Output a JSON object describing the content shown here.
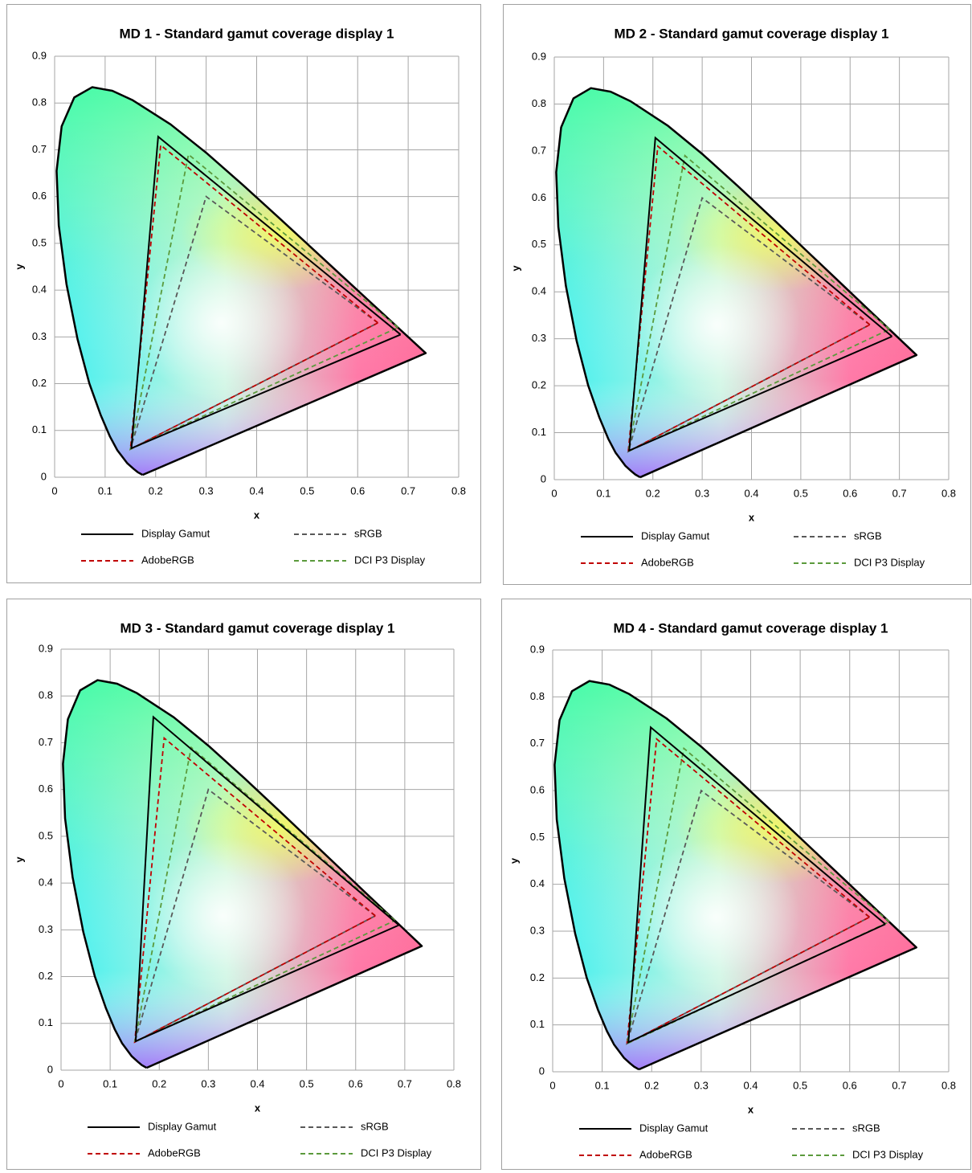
{
  "chart_data": [
    {
      "type": "line",
      "title": "MD 1 - Standard gamut coverage display 1",
      "x_label": "x",
      "y_label": "y",
      "xlim": [
        0,
        0.8
      ],
      "ylim": [
        0,
        0.9
      ],
      "xticks": [
        0,
        0.1,
        0.2,
        0.3,
        0.4,
        0.5,
        0.6,
        0.7,
        0.8
      ],
      "yticks": [
        0,
        0.1,
        0.2,
        0.3,
        0.4,
        0.5,
        0.6,
        0.7,
        0.8,
        0.9
      ],
      "grid": true,
      "spectral_locus": {
        "x": [
          0.1741,
          0.1644,
          0.1566,
          0.144,
          0.1241,
          0.1096,
          0.0913,
          0.0687,
          0.0454,
          0.0235,
          0.0082,
          0.0039,
          0.0139,
          0.0389,
          0.0743,
          0.1142,
          0.1547,
          0.2296,
          0.3016,
          0.3731,
          0.4441,
          0.5125,
          0.5752,
          0.627,
          0.6915,
          0.719,
          0.7347,
          0.1741
        ],
        "y": [
          0.005,
          0.0109,
          0.0177,
          0.0297,
          0.0578,
          0.0868,
          0.1327,
          0.2007,
          0.295,
          0.4127,
          0.5384,
          0.6548,
          0.7502,
          0.812,
          0.8338,
          0.8262,
          0.8059,
          0.7543,
          0.6923,
          0.6245,
          0.5547,
          0.4866,
          0.4242,
          0.3725,
          0.3083,
          0.2809,
          0.2653,
          0.005
        ]
      },
      "series": [
        {
          "name": "Display Gamut",
          "color": "#000000",
          "dashed": false,
          "x": [
            0.685,
            0.205,
            0.152,
            0.685
          ],
          "values": [
            0.305,
            0.728,
            0.062,
            0.305
          ]
        },
        {
          "name": "sRGB",
          "color": "#595959",
          "dashed": true,
          "x": [
            0.64,
            0.3,
            0.15,
            0.64
          ],
          "values": [
            0.33,
            0.6,
            0.06,
            0.33
          ]
        },
        {
          "name": "AdobeRGB",
          "color": "#c00000",
          "dashed": true,
          "x": [
            0.64,
            0.21,
            0.15,
            0.64
          ],
          "values": [
            0.33,
            0.71,
            0.06,
            0.33
          ]
        },
        {
          "name": "DCI P3 Display",
          "color": "#5b9a3c",
          "dashed": true,
          "x": [
            0.68,
            0.265,
            0.15,
            0.68
          ],
          "values": [
            0.32,
            0.69,
            0.06,
            0.32
          ]
        }
      ]
    },
    {
      "type": "line",
      "title": "MD 2 - Standard gamut coverage display 1",
      "x_label": "x",
      "y_label": "y",
      "xlim": [
        0,
        0.8
      ],
      "ylim": [
        0,
        0.9
      ],
      "xticks": [
        0,
        0.1,
        0.2,
        0.3,
        0.4,
        0.5,
        0.6,
        0.7,
        0.8
      ],
      "yticks": [
        0,
        0.1,
        0.2,
        0.3,
        0.4,
        0.5,
        0.6,
        0.7,
        0.8,
        0.9
      ],
      "grid": true,
      "spectral_locus": {
        "x": [
          0.1741,
          0.1644,
          0.1566,
          0.144,
          0.1241,
          0.1096,
          0.0913,
          0.0687,
          0.0454,
          0.0235,
          0.0082,
          0.0039,
          0.0139,
          0.0389,
          0.0743,
          0.1142,
          0.1547,
          0.2296,
          0.3016,
          0.3731,
          0.4441,
          0.5125,
          0.5752,
          0.627,
          0.6915,
          0.719,
          0.7347,
          0.1741
        ],
        "y": [
          0.005,
          0.0109,
          0.0177,
          0.0297,
          0.0578,
          0.0868,
          0.1327,
          0.2007,
          0.295,
          0.4127,
          0.5384,
          0.6548,
          0.7502,
          0.812,
          0.8338,
          0.8262,
          0.8059,
          0.7543,
          0.6923,
          0.6245,
          0.5547,
          0.4866,
          0.4242,
          0.3725,
          0.3083,
          0.2809,
          0.2653,
          0.005
        ]
      },
      "series": [
        {
          "name": "Display Gamut",
          "color": "#000000",
          "dashed": false,
          "x": [
            0.685,
            0.205,
            0.152,
            0.685
          ],
          "values": [
            0.305,
            0.728,
            0.062,
            0.305
          ]
        },
        {
          "name": "sRGB",
          "color": "#595959",
          "dashed": true,
          "x": [
            0.64,
            0.3,
            0.15,
            0.64
          ],
          "values": [
            0.33,
            0.6,
            0.06,
            0.33
          ]
        },
        {
          "name": "AdobeRGB",
          "color": "#c00000",
          "dashed": true,
          "x": [
            0.64,
            0.21,
            0.15,
            0.64
          ],
          "values": [
            0.33,
            0.71,
            0.06,
            0.33
          ]
        },
        {
          "name": "DCI P3 Display",
          "color": "#5b9a3c",
          "dashed": true,
          "x": [
            0.68,
            0.265,
            0.15,
            0.68
          ],
          "values": [
            0.32,
            0.69,
            0.06,
            0.32
          ]
        }
      ]
    },
    {
      "type": "line",
      "title": "MD 3 - Standard gamut coverage display 1",
      "x_label": "x",
      "y_label": "y",
      "xlim": [
        0,
        0.8
      ],
      "ylim": [
        0,
        0.9
      ],
      "xticks": [
        0,
        0.1,
        0.2,
        0.3,
        0.4,
        0.5,
        0.6,
        0.7,
        0.8
      ],
      "yticks": [
        0,
        0.1,
        0.2,
        0.3,
        0.4,
        0.5,
        0.6,
        0.7,
        0.8,
        0.9
      ],
      "grid": true,
      "spectral_locus": {
        "x": [
          0.1741,
          0.1644,
          0.1566,
          0.144,
          0.1241,
          0.1096,
          0.0913,
          0.0687,
          0.0454,
          0.0235,
          0.0082,
          0.0039,
          0.0139,
          0.0389,
          0.0743,
          0.1142,
          0.1547,
          0.2296,
          0.3016,
          0.3731,
          0.4441,
          0.5125,
          0.5752,
          0.627,
          0.6915,
          0.719,
          0.7347,
          0.1741
        ],
        "y": [
          0.005,
          0.0109,
          0.0177,
          0.0297,
          0.0578,
          0.0868,
          0.1327,
          0.2007,
          0.295,
          0.4127,
          0.5384,
          0.6548,
          0.7502,
          0.812,
          0.8338,
          0.8262,
          0.8059,
          0.7543,
          0.6923,
          0.6245,
          0.5547,
          0.4866,
          0.4242,
          0.3725,
          0.3083,
          0.2809,
          0.2653,
          0.005
        ]
      },
      "series": [
        {
          "name": "Display Gamut",
          "color": "#000000",
          "dashed": false,
          "x": [
            0.688,
            0.188,
            0.152,
            0.688
          ],
          "values": [
            0.31,
            0.755,
            0.062,
            0.31
          ]
        },
        {
          "name": "sRGB",
          "color": "#595959",
          "dashed": true,
          "x": [
            0.64,
            0.3,
            0.15,
            0.64
          ],
          "values": [
            0.33,
            0.6,
            0.06,
            0.33
          ]
        },
        {
          "name": "AdobeRGB",
          "color": "#c00000",
          "dashed": true,
          "x": [
            0.64,
            0.21,
            0.15,
            0.64
          ],
          "values": [
            0.33,
            0.71,
            0.06,
            0.33
          ]
        },
        {
          "name": "DCI P3 Display",
          "color": "#5b9a3c",
          "dashed": true,
          "x": [
            0.68,
            0.265,
            0.15,
            0.68
          ],
          "values": [
            0.32,
            0.69,
            0.06,
            0.32
          ]
        }
      ]
    },
    {
      "type": "line",
      "title": "MD 4 - Standard gamut coverage display 1",
      "x_label": "x",
      "y_label": "y",
      "xlim": [
        0,
        0.8
      ],
      "ylim": [
        0,
        0.9
      ],
      "xticks": [
        0,
        0.1,
        0.2,
        0.3,
        0.4,
        0.5,
        0.6,
        0.7,
        0.8
      ],
      "yticks": [
        0,
        0.1,
        0.2,
        0.3,
        0.4,
        0.5,
        0.6,
        0.7,
        0.8,
        0.9
      ],
      "grid": true,
      "spectral_locus": {
        "x": [
          0.1741,
          0.1644,
          0.1566,
          0.144,
          0.1241,
          0.1096,
          0.0913,
          0.0687,
          0.0454,
          0.0235,
          0.0082,
          0.0039,
          0.0139,
          0.0389,
          0.0743,
          0.1142,
          0.1547,
          0.2296,
          0.3016,
          0.3731,
          0.4441,
          0.5125,
          0.5752,
          0.627,
          0.6915,
          0.719,
          0.7347,
          0.1741
        ],
        "y": [
          0.005,
          0.0109,
          0.0177,
          0.0297,
          0.0578,
          0.0868,
          0.1327,
          0.2007,
          0.295,
          0.4127,
          0.5384,
          0.6548,
          0.7502,
          0.812,
          0.8338,
          0.8262,
          0.8059,
          0.7543,
          0.6923,
          0.6245,
          0.5547,
          0.4866,
          0.4242,
          0.3725,
          0.3083,
          0.2809,
          0.2653,
          0.005
        ]
      },
      "series": [
        {
          "name": "Display Gamut",
          "color": "#000000",
          "dashed": false,
          "x": [
            0.672,
            0.198,
            0.153,
            0.672
          ],
          "values": [
            0.315,
            0.735,
            0.063,
            0.315
          ]
        },
        {
          "name": "sRGB",
          "color": "#595959",
          "dashed": true,
          "x": [
            0.64,
            0.3,
            0.15,
            0.64
          ],
          "values": [
            0.33,
            0.6,
            0.06,
            0.33
          ]
        },
        {
          "name": "AdobeRGB",
          "color": "#c00000",
          "dashed": true,
          "x": [
            0.64,
            0.21,
            0.15,
            0.64
          ],
          "values": [
            0.33,
            0.71,
            0.06,
            0.33
          ]
        },
        {
          "name": "DCI P3 Display",
          "color": "#5b9a3c",
          "dashed": true,
          "x": [
            0.68,
            0.265,
            0.15,
            0.68
          ],
          "values": [
            0.32,
            0.69,
            0.06,
            0.32
          ]
        }
      ]
    }
  ]
}
